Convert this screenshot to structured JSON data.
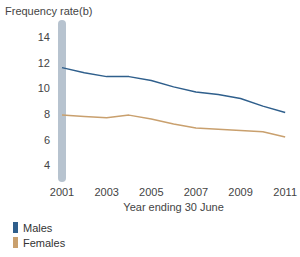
{
  "chart_data": {
    "type": "line",
    "y_label": "Frequency rate(b)",
    "x_label": "Year ending 30 June",
    "x": [
      2001,
      2002,
      2003,
      2004,
      2005,
      2006,
      2007,
      2008,
      2009,
      2010,
      2011
    ],
    "series": [
      {
        "name": "Males",
        "color": "#2f5f8c",
        "values": [
          11.6,
          11.2,
          10.9,
          10.9,
          10.6,
          10.1,
          9.7,
          9.5,
          9.2,
          8.6,
          8.1
        ]
      },
      {
        "name": "Females",
        "color": "#c9a06e",
        "values": [
          7.9,
          7.8,
          7.7,
          7.9,
          7.6,
          7.2,
          6.9,
          6.8,
          6.7,
          6.6,
          6.2
        ]
      }
    ],
    "xlim": [
      2001,
      2011
    ],
    "xticks": [
      2001,
      2003,
      2005,
      2007,
      2009,
      2011
    ],
    "ylim": [
      3,
      15
    ],
    "yticks": [
      4,
      6,
      8,
      10,
      12,
      14
    ],
    "grid": false,
    "legend": "bottom-left"
  }
}
